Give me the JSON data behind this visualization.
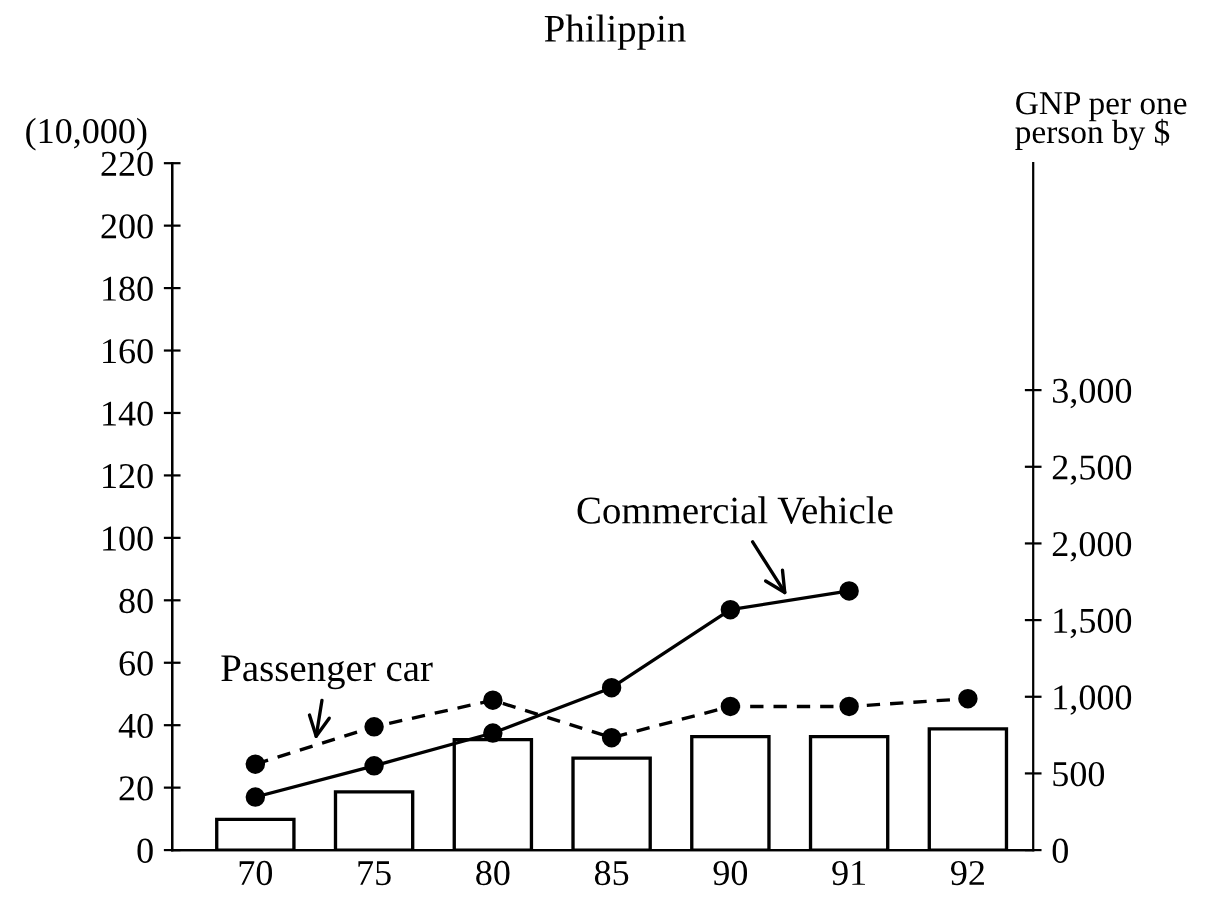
{
  "chart_data": {
    "type": "bar",
    "title": "Philippin",
    "ylabel": "(10,000)",
    "y2label": "GNP per one\nperson by $",
    "categories": [
      "70",
      "75",
      "80",
      "85",
      "90",
      "91",
      "92"
    ],
    "series": [
      {
        "axis": "y2",
        "color": "#ffffff",
        "values": [
          200,
          380,
          720,
          600,
          740,
          740,
          790
        ]
      },
      {
        "type": "line",
        "name": "Commercial Vehicle",
        "color": "#000000",
        "line_style": "solid",
        "marker": "circle",
        "values": [
          17,
          27,
          37.5,
          52,
          77,
          83,
          null
        ]
      },
      {
        "type": "line",
        "name": "Passenger car",
        "color": "#000000",
        "line_style": "dashed",
        "marker": "circle",
        "values": [
          27.5,
          39.5,
          48,
          36,
          46,
          46,
          48.5
        ]
      }
    ],
    "ylim": [
      0,
      220
    ],
    "yticks": [
      0,
      20,
      40,
      60,
      80,
      100,
      120,
      140,
      160,
      180,
      200,
      220
    ],
    "y2lim": [
      0,
      4480
    ],
    "y2ticks": [
      0,
      {
        "value": 500,
        "label": "500"
      },
      {
        "value": 1000,
        "label": "1,000"
      },
      {
        "value": 1500,
        "label": "1,500"
      },
      {
        "value": 2000,
        "label": "2,000"
      },
      {
        "value": 2500,
        "label": "2,500"
      },
      {
        "value": 3000,
        "label": "3,000"
      }
    ],
    "grid": false,
    "legend": false
  }
}
